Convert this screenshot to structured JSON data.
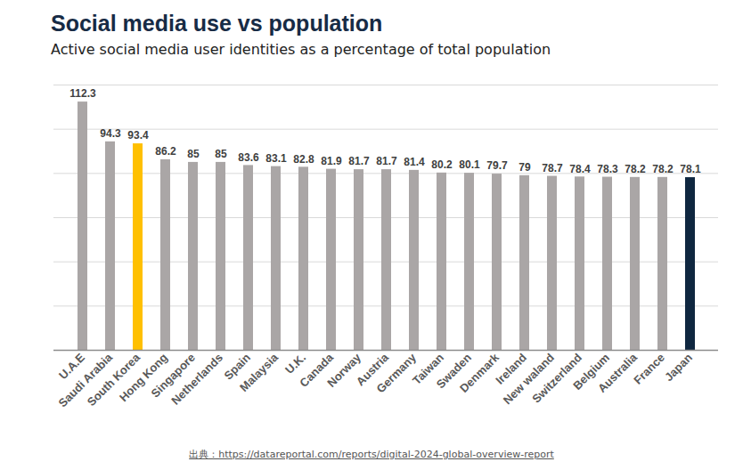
{
  "chart_data": {
    "type": "bar",
    "title": "Social media use vs population",
    "subtitle": "Active social media user identities as a percentage of total population",
    "source": "出典：https://datareportal.com/reports/digital-2024-global-overview-report",
    "categories": [
      "U.A.E",
      "Saudi Arabia",
      "South Korea",
      "Hong Kong",
      "Singapore",
      "Netherlands",
      "Spain",
      "Malaysia",
      "U.K.",
      "Canada",
      "Norway",
      "Austria",
      "Germany",
      "Taiwan",
      "Swaden",
      "Denmark",
      "Ireland",
      "New waland",
      "Switzerland",
      "Belgium",
      "Australia",
      "France",
      "Japan"
    ],
    "values": [
      112.3,
      94.3,
      93.4,
      86.2,
      85,
      85,
      83.6,
      83.1,
      82.8,
      81.9,
      81.7,
      81.7,
      81.4,
      80.2,
      80.1,
      79.7,
      79,
      78.7,
      78.4,
      78.3,
      78.2,
      78.2,
      78.1
    ],
    "colors": [
      "#aaa6a6",
      "#aaa6a6",
      "#ffc000",
      "#aaa6a6",
      "#aaa6a6",
      "#aaa6a6",
      "#aaa6a6",
      "#aaa6a6",
      "#aaa6a6",
      "#aaa6a6",
      "#aaa6a6",
      "#aaa6a6",
      "#aaa6a6",
      "#aaa6a6",
      "#aaa6a6",
      "#aaa6a6",
      "#aaa6a6",
      "#aaa6a6",
      "#aaa6a6",
      "#aaa6a6",
      "#aaa6a6",
      "#aaa6a6",
      "#0f2740"
    ],
    "ylim": [
      0,
      120
    ],
    "yticks": [
      0,
      20,
      40,
      60,
      80,
      100,
      120
    ],
    "grid": true,
    "data_labels": true,
    "tick_labels": "x"
  }
}
